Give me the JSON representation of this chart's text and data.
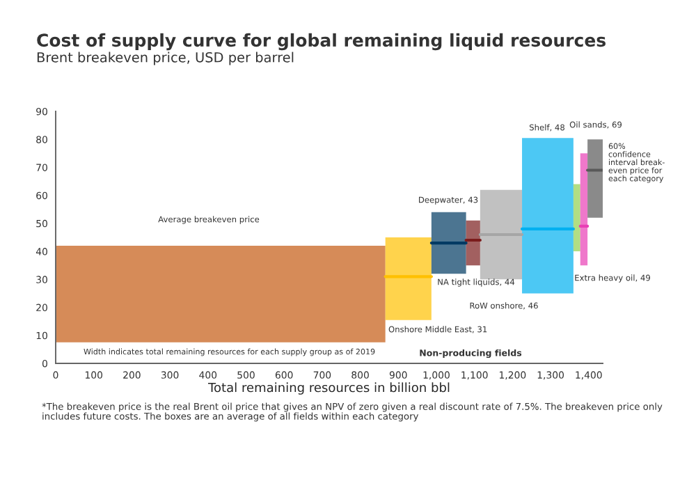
{
  "chart_data": {
    "type": "line",
    "title": "Cost of supply curve for global remaining liquid resources",
    "subtitle": "Brent breakeven price, USD per barrel",
    "xlabel": "Total remaining resources in billion bbl",
    "xlim": [
      0,
      1437
    ],
    "ylim": [
      0,
      90
    ],
    "xticks": [
      0,
      100,
      200,
      300,
      400,
      500,
      600,
      700,
      800,
      900,
      {
        "value": 1000,
        "label": "1,000"
      },
      {
        "value": 1100,
        "label": "1,100"
      },
      {
        "value": 1200,
        "label": "1,200"
      },
      {
        "value": 1300,
        "label": "1,300"
      },
      {
        "value": 1400,
        "label": "1,400"
      }
    ],
    "yticks": [
      0,
      10,
      20,
      30,
      40,
      50,
      60,
      70,
      80,
      90
    ],
    "grid": false,
    "legend": false,
    "series": [
      {
        "color": "#c55a11",
        "x": [
          0,
          866
        ],
        "values": [
          null,
          null
        ],
        "lower": [
          7.5,
          7.5
        ],
        "upper": [
          42,
          42
        ]
      },
      {
        "color": "#ffc000",
        "x": [
          866,
          987
        ],
        "values": [
          31,
          31
        ],
        "lower": [
          15.5,
          15.5
        ],
        "upper": [
          45,
          45
        ]
      },
      {
        "color": "#003a63",
        "x": [
          987,
          1078
        ],
        "values": [
          43,
          43
        ],
        "lower": [
          32,
          32
        ],
        "upper": [
          54,
          54
        ]
      },
      {
        "color": "#7b1c1c",
        "x": [
          1078,
          1115
        ],
        "values": [
          44,
          44
        ],
        "lower": [
          35,
          35
        ],
        "upper": [
          51,
          51
        ]
      },
      {
        "color": "#a6a6a6",
        "x": [
          1115,
          1225
        ],
        "values": [
          46,
          46
        ],
        "lower": [
          30,
          30
        ],
        "upper": [
          62,
          62
        ]
      },
      {
        "color": "#00b0f0",
        "x": [
          1225,
          1360
        ],
        "values": [
          48,
          48
        ],
        "lower": [
          25,
          25
        ],
        "upper": [
          80.5,
          80.5
        ]
      },
      {
        "color": "#92d050",
        "x": [
          1360,
          1378
        ],
        "values": [
          null,
          null
        ],
        "lower": [
          40,
          40
        ],
        "upper": [
          64,
          64
        ]
      },
      {
        "color": "#e83fb5",
        "x": [
          1378,
          1397
        ],
        "values": [
          49,
          49
        ],
        "lower": [
          35,
          35
        ],
        "upper": [
          75,
          75
        ]
      },
      {
        "color": "#595959",
        "x": [
          1397,
          1437
        ],
        "values": [
          69,
          69
        ],
        "lower": [
          52,
          52
        ],
        "upper": [
          80,
          80
        ]
      }
    ],
    "annotations": [
      "Average breakeven price",
      "Deepwater, 43",
      "NA tight liquids, 44",
      "RoW onshore, 46",
      "Shelf, 48",
      "Oil sands, 69",
      "Extra heavy oil, 49",
      "Onshore Middle East, 31",
      "60%\nconfidence\ninterval break-\neven price for\neach category",
      "Width indicates total remaining resources for each supply group as of 2019",
      "Non-producing fields",
      "*The breakeven price is the real Brent oil price that gives an NPV of zero given a real discount rate of 7.5%. The breakeven price only\nincludes future costs. The boxes are an average of all fields within each category"
    ]
  }
}
